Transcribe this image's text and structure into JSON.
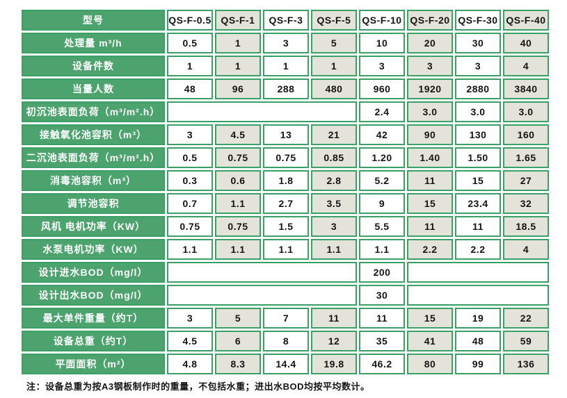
{
  "colors": {
    "label_green_fill": "#4DA36E",
    "border_green": "#3AA065",
    "stripe_grey": "#E3E3D9",
    "cell_white": "#FFFFFF",
    "label_text": "#FFFFFF",
    "value_text": "#141414"
  },
  "table": {
    "header": {
      "label": "型号",
      "models": [
        "QS-F-0.5",
        "QS-F-1",
        "QS-F-3",
        "QS-F-5",
        "QS-F-10",
        "QS-F-20",
        "QS-F-30",
        "QS-F-40"
      ]
    },
    "rows": [
      {
        "label": "处理量 m³/h",
        "values": [
          "0.5",
          "1",
          "3",
          "5",
          "10",
          "20",
          "30",
          "40"
        ]
      },
      {
        "label": "设备件数",
        "values": [
          "1",
          "1",
          "1",
          "1",
          "3",
          "3",
          "3",
          "4"
        ]
      },
      {
        "label": "当量人数",
        "values": [
          "48",
          "96",
          "288",
          "480",
          "960",
          "1920",
          "2880",
          "3840"
        ]
      },
      {
        "label": "初沉池表面负荷（m³/m².h）",
        "values": [
          "2.4",
          "3.0",
          "3.0",
          "3.0"
        ]
      },
      {
        "label": "接触氧化池容积（m³）",
        "values": [
          "3",
          "4.5",
          "13",
          "21",
          "42",
          "90",
          "130",
          "160"
        ]
      },
      {
        "label": "二沉池表面负荷（m³/m².h）",
        "values": [
          "0.5",
          "0.75",
          "0.75",
          "0.85",
          "1.20",
          "1.40",
          "1.50",
          "1.65"
        ]
      },
      {
        "label": "消毒池容积（m³）",
        "values": [
          "0.3",
          "0.6",
          "1.8",
          "2.8",
          "5.2",
          "11",
          "15",
          "27"
        ]
      },
      {
        "label": "调节池容积",
        "values": [
          "0.7",
          "1.1",
          "2.7",
          "3.5",
          "9",
          "15",
          "23.4",
          "32"
        ]
      },
      {
        "label": "风机 电机功率（KW）",
        "values": [
          "0.75",
          "0.75",
          "1.5",
          "3",
          "5.5",
          "11",
          "11",
          "18.5"
        ]
      },
      {
        "label": "水泵电机功率（KW）",
        "values": [
          "1.1",
          "1.1",
          "1.1",
          "1.1",
          "1.1",
          "2.2",
          "2.2",
          "4"
        ]
      },
      {
        "label": "设计进水BOD（mg/l）",
        "values": [
          "200"
        ]
      },
      {
        "label": "设计出水BOD（mg/l）",
        "values": [
          "30"
        ]
      },
      {
        "label": "最大单件重量（约T）",
        "values": [
          "3",
          "5",
          "7",
          "11",
          "11",
          "15",
          "19",
          "22"
        ]
      },
      {
        "label": "设备总重（约T）",
        "values": [
          "4.5",
          "6",
          "8",
          "12",
          "35",
          "41",
          "48",
          "59"
        ]
      },
      {
        "label": "平面面积（m²）",
        "values": [
          "4.8",
          "8.3",
          "14.4",
          "19.8",
          "46.2",
          "80",
          "99",
          "136"
        ]
      }
    ]
  },
  "note": "注：设备总重为按A3钢板制作时的重量，不包括水重；进出水BOD均按平均数计。"
}
